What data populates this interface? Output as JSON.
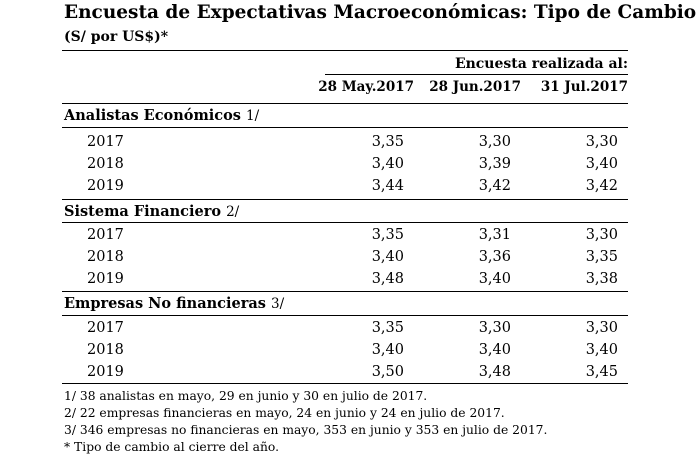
{
  "header": {
    "title": "Encuesta de Expectativas Macroeconómicas: Tipo de Cambio",
    "subtitle": "(S/ por US$)*"
  },
  "table": {
    "survey_header": "Encuesta realizada al:",
    "columns": [
      "28 May.2017",
      "28 Jun.2017",
      "31 Jul.2017"
    ],
    "sections": [
      {
        "title": "Analistas Económicos",
        "note": "1/",
        "rows": [
          {
            "year": "2017",
            "values": [
              "3,35",
              "3,30",
              "3,30"
            ]
          },
          {
            "year": "2018",
            "values": [
              "3,40",
              "3,39",
              "3,40"
            ]
          },
          {
            "year": "2019",
            "values": [
              "3,44",
              "3,42",
              "3,42"
            ]
          }
        ]
      },
      {
        "title": "Sistema Financiero",
        "note": "2/",
        "rows": [
          {
            "year": "2017",
            "values": [
              "3,35",
              "3,31",
              "3,30"
            ]
          },
          {
            "year": "2018",
            "values": [
              "3,40",
              "3,36",
              "3,35"
            ]
          },
          {
            "year": "2019",
            "values": [
              "3,48",
              "3,40",
              "3,38"
            ]
          }
        ]
      },
      {
        "title": "Empresas No financieras",
        "note": "3/",
        "rows": [
          {
            "year": "2017",
            "values": [
              "3,35",
              "3,30",
              "3,30"
            ]
          },
          {
            "year": "2018",
            "values": [
              "3,40",
              "3,40",
              "3,40"
            ]
          },
          {
            "year": "2019",
            "values": [
              "3,50",
              "3,48",
              "3,45"
            ]
          }
        ]
      }
    ]
  },
  "footnotes": [
    "1/ 38 analistas en mayo, 29 en junio y 30 en julio de 2017.",
    "2/ 22 empresas financieras en mayo, 24 en junio y 24 en julio de 2017.",
    "3/ 346 empresas no financieras en mayo, 353 en junio y 353 en julio de 2017.",
    "* Tipo de cambio al cierre del año."
  ]
}
